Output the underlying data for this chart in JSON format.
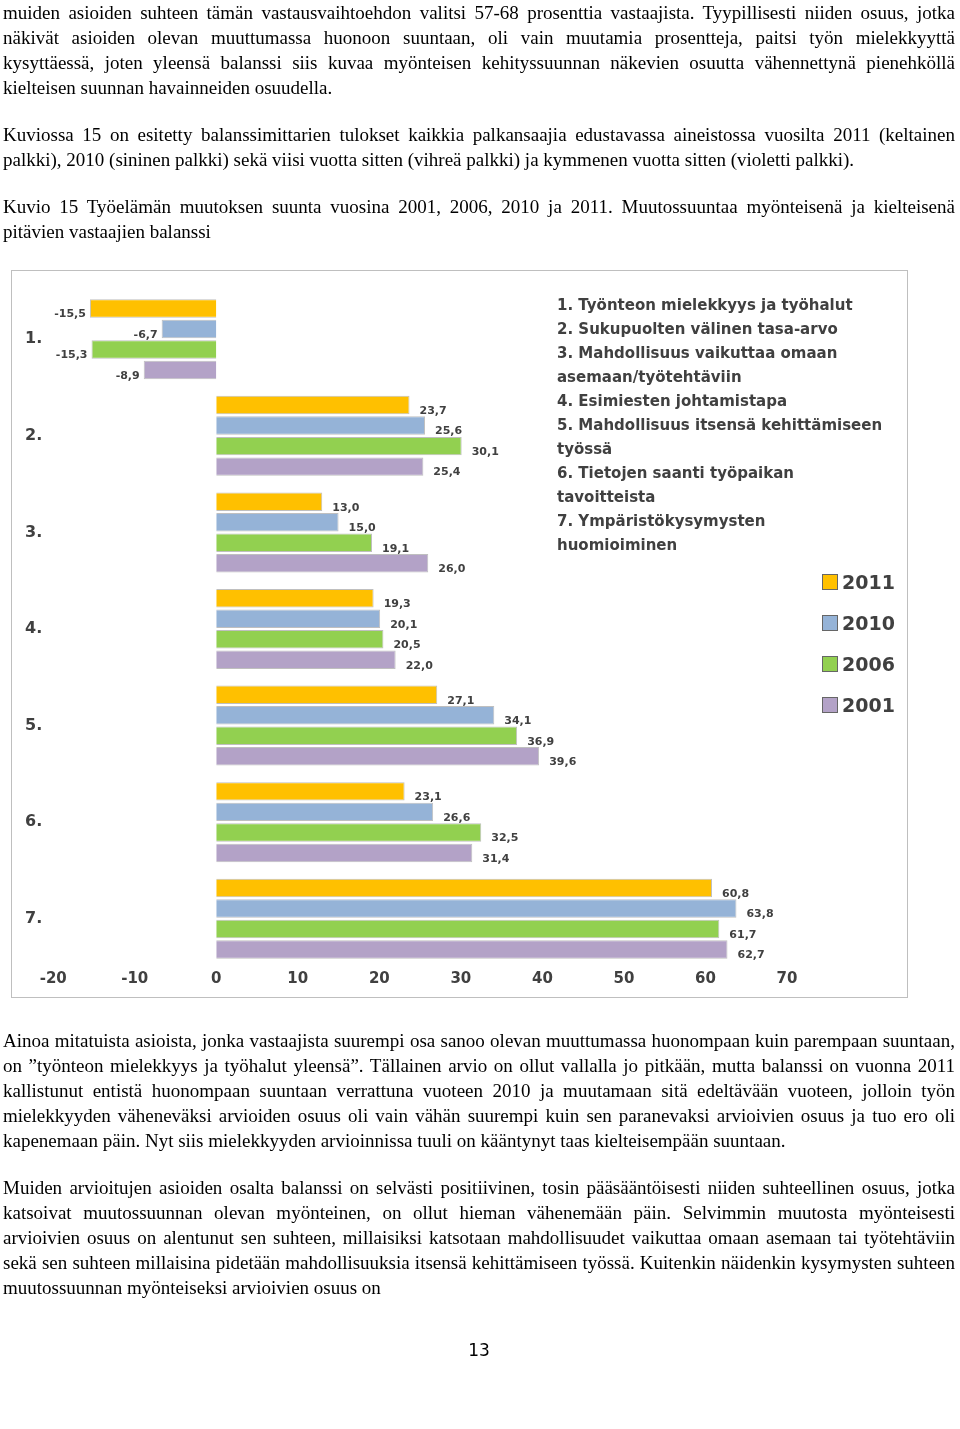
{
  "chart_data": {
    "type": "bar",
    "orientation": "horizontal",
    "title": "Kuvio 15 Työelämän muutoksen suunta vuosina 2001, 2006, 2010 ja 2011. Muutossuuntaa myönteisenä ja kielteisenä pitävien vastaajien balanssi",
    "categories": [
      "1.",
      "2.",
      "3.",
      "4.",
      "5.",
      "6.",
      "7."
    ],
    "series": [
      {
        "name": "2011",
        "color": "#ffc000",
        "values": [
          -15.5,
          23.7,
          13.0,
          19.3,
          27.1,
          23.1,
          60.8
        ],
        "value_labels": [
          "-15,5",
          "23,7",
          "13,0",
          "19,3",
          "27,1",
          "23,1",
          "60,8"
        ]
      },
      {
        "name": "2010",
        "color": "#95b3d7",
        "values": [
          -6.7,
          25.6,
          15.0,
          20.1,
          34.1,
          26.6,
          63.8
        ],
        "value_labels": [
          "-6,7",
          "25,6",
          "15,0",
          "20,1",
          "34,1",
          "26,6",
          "63,8"
        ]
      },
      {
        "name": "2006",
        "color": "#92d050",
        "values": [
          -15.3,
          30.1,
          19.1,
          20.5,
          36.9,
          32.5,
          61.7
        ],
        "value_labels": [
          "-15,3",
          "30,1",
          "19,1",
          "20,5",
          "36,9",
          "32,5",
          "61,7"
        ]
      },
      {
        "name": "2001",
        "color": "#b3a2c7",
        "values": [
          -8.9,
          25.4,
          26.0,
          22.0,
          39.6,
          31.4,
          62.7
        ],
        "value_labels": [
          "-8,9",
          "25,4",
          "26,0",
          "22,0",
          "39,6",
          "31,4",
          "62,7"
        ]
      }
    ],
    "xlim": [
      -20,
      70
    ],
    "xticks": [
      -20,
      -10,
      0,
      10,
      20,
      30,
      40,
      50,
      60,
      70
    ],
    "legend": "right",
    "annotations": [
      "muiden asioiden suhteen tämän vastausvaihtoehdon valitsi 57-68 prosenttia vastaajista. Tyypillisesti niiden osuus, jotka näkivät asioiden olevan muuttumassa huonoon suuntaan, oli vain muutamia prosentteja, paitsi työn mielekkyyttä kysyttäessä, joten yleensä balanssi siis kuvaa myönteisen kehityssuunnan näkevien osuutta vähennettynä pienehköllä kielteisen suunnan havainneiden osuudella.",
      "Kuviossa 15 on esitetty balanssimittarien tulokset kaikkia palkansaajia edustavassa aineistossa vuosilta 2011 (keltainen palkki), 2010 (sininen palkki) sekä viisi vuotta sitten (vihreä palkki) ja kymmenen vuotta sitten (violetti palkki).",
      "1. Työnteon mielekkyys ja työhalut",
      "2. Sukupuolten välinen tasa-arvo",
      "3. Mahdollisuus vaikuttaa omaan asemaan/työtehtäviin",
      "4. Esimiesten johtamistapa",
      "5. Mahdollisuus itsensä kehittämiseen työssä",
      "6. Tietojen saanti työpaikan tavoitteista",
      "7. Ympäristökysymysten huomioiminen",
      "Ainoa mitatuista asioista, jonka vastaajista suurempi osa sanoo olevan muuttumassa huonompaan kuin parempaan suuntaan, on ”työnteon mielekkyys ja työhalut yleensä”. Tällainen arvio on ollut vallalla jo pitkään, mutta balanssi on vuonna 2011 kallistunut entistä huonompaan suuntaan verrattuna vuoteen 2010 ja muutamaan sitä edeltävään vuoteen, jolloin työn mielekkyyden väheneväksi arvioiden osuus oli vain vähän suurempi kuin sen paranevaksi arvioivien osuus ja tuo ero oli kapenemaan päin. Nyt siis mielekkyyden arvioinnissa tuuli on kääntynyt taas kielteisempään suuntaan.",
      "Muiden arvioitujen asioiden osalta balanssi on selvästi positiivinen, tosin pääsääntöisesti niiden suhteellinen osuus, jotka katsoivat muutossuunnan olevan myönteinen, on ollut hieman vähenemään päin. Selvimmin muutosta myönteisesti arvioivien osuus on alentunut sen suhteen, millaisiksi katsotaan mahdollisuudet vaikuttaa omaan asemaan tai työtehtäviin sekä sen suhteen millaisina pidetään mahdollisuuksia itsensä kehittämiseen työssä. Kuitenkin näidenkin kysymysten suhteen muutossuunnan myönteiseksi arvioivien osuus on",
      "13"
    ]
  }
}
